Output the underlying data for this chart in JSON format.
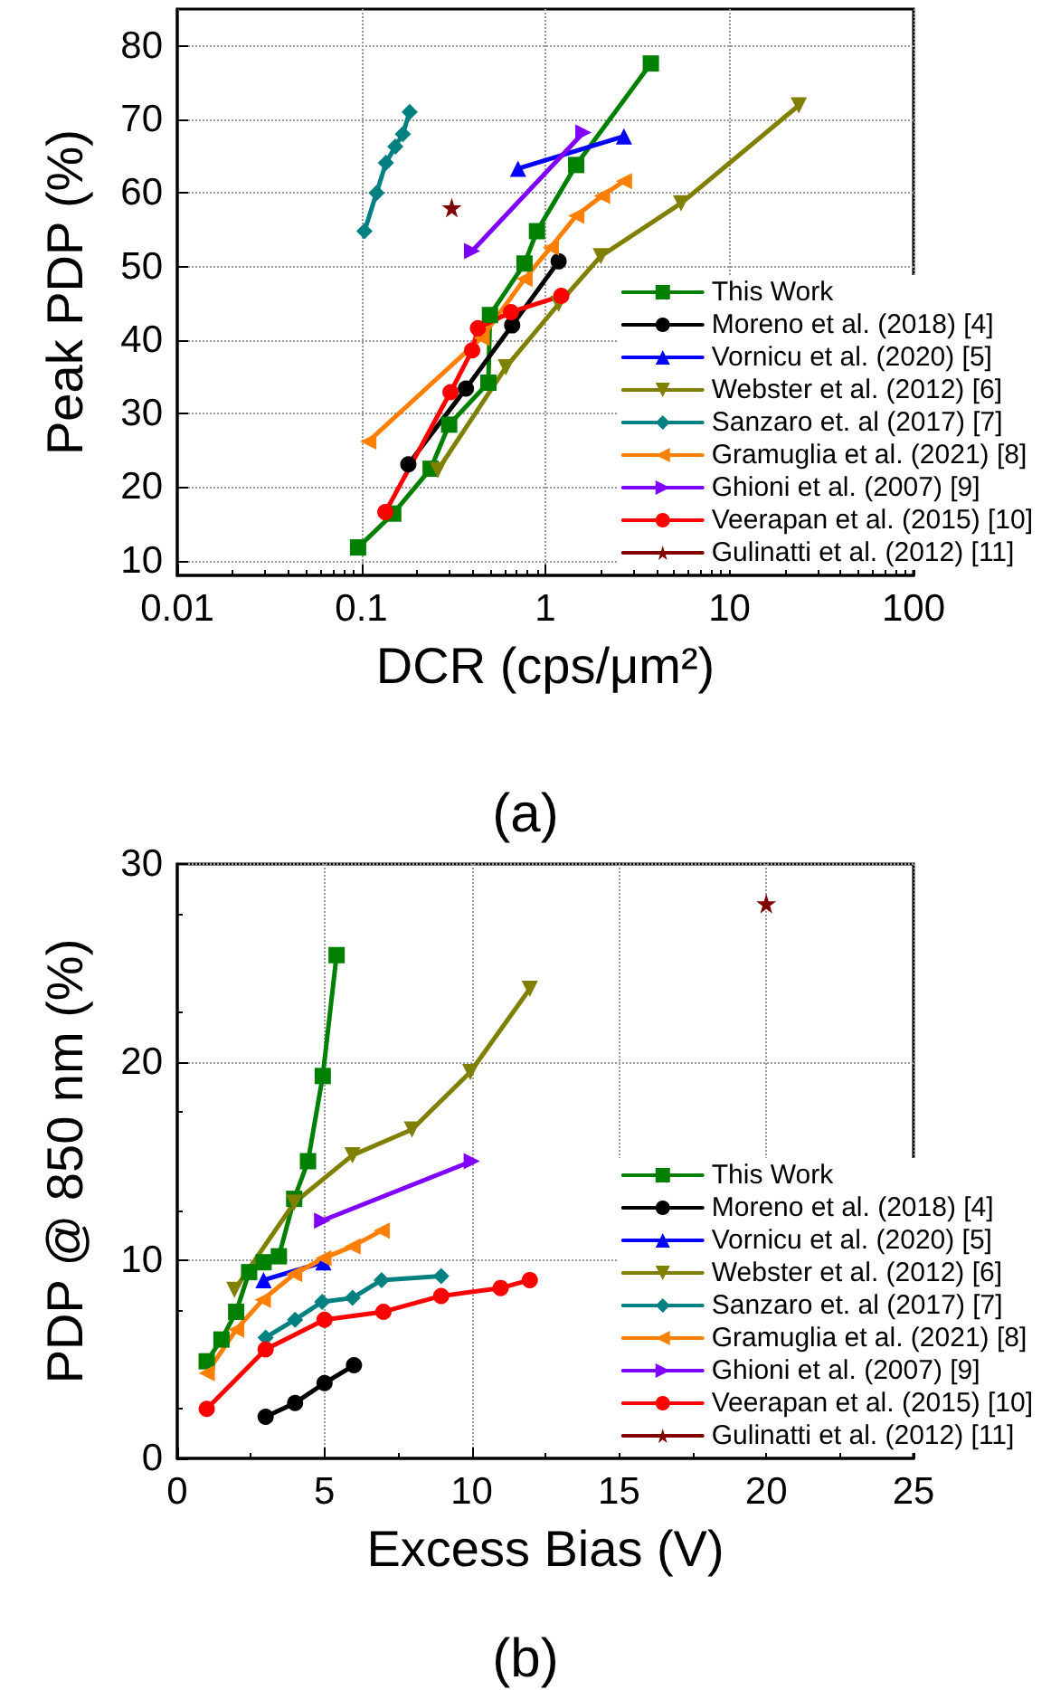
{
  "chart_data": [
    {
      "type": "line",
      "xlabel": "DCR (cps/μm²)",
      "ylabel": "Peak PDP (%)",
      "log": "x",
      "xlim": [
        0.01,
        100
      ],
      "xticks": [
        0.01,
        0.1,
        1,
        10,
        100
      ],
      "ylim": [
        8,
        85
      ],
      "yticks": [
        10,
        20,
        30,
        40,
        50,
        60,
        70,
        80
      ],
      "grid": true,
      "legend": "right",
      "annotations": [
        "(a)"
      ],
      "series": [
        {
          "name": "This Work",
          "color": "#008000",
          "marker": "square",
          "x": [
            0.096,
            0.149,
            0.238,
            0.3,
            0.49,
            0.5,
            0.77,
            0.9,
            1.47,
            3.74
          ],
          "values": [
            11.8,
            16.4,
            22.5,
            28.5,
            34.2,
            43.4,
            50.4,
            54.8,
            63.8,
            77.6
          ]
        },
        {
          "name": "Moreno et al. (2018) [4]",
          "color": "#000000",
          "marker": "circle",
          "x": [
            0.18,
            0.37,
            0.66,
            1.18
          ],
          "values": [
            23.1,
            33.4,
            42.0,
            50.7
          ]
        },
        {
          "name": "Vornicu et al. (2020) [5]",
          "color": "#0000ff",
          "marker": "triangle",
          "x": [
            0.71,
            2.67
          ],
          "values": [
            63.3,
            67.7
          ]
        },
        {
          "name": "Webster et al. (2012) [6]",
          "color": "#808000",
          "marker": "triangle-down",
          "x": [
            0.26,
            0.61,
            1.18,
            2.0,
            5.46,
            23.8
          ],
          "values": [
            22.3,
            36.3,
            44.9,
            51.4,
            58.6,
            71.9
          ]
        },
        {
          "name": "Sanzaro et. al (2017) [7]",
          "color": "#008080",
          "marker": "diamond",
          "x": [
            0.104,
            0.121,
            0.136,
            0.153,
            0.168,
            0.183
          ],
          "values": [
            54.8,
            60.0,
            64.1,
            66.3,
            68.0,
            71.0
          ]
        },
        {
          "name": "Gramuglia et al. (2021) [8]",
          "color": "#ff8000",
          "marker": "triangle-left",
          "x": [
            0.109,
            0.45,
            0.77,
            1.07,
            1.47,
            2.03,
            2.67
          ],
          "values": [
            26.2,
            40.3,
            48.3,
            52.6,
            56.9,
            59.6,
            61.6
          ]
        },
        {
          "name": "Ghioni et al. (2007) [9]",
          "color": "#8000ff",
          "marker": "triangle-right",
          "x": [
            0.4,
            1.61
          ],
          "values": [
            52.1,
            68.2
          ]
        },
        {
          "name": "Veerapan et al. (2015) [10]",
          "color": "#ff0000",
          "marker": "circle",
          "x": [
            0.135,
            0.305,
            0.4,
            0.43,
            0.65,
            1.22
          ],
          "values": [
            16.6,
            32.9,
            38.6,
            41.6,
            43.8,
            46.0
          ]
        },
        {
          "name": "Gulinatti et al. (2012) [11]",
          "color": "#800000",
          "marker": "star",
          "x": [
            0.31
          ],
          "values": [
            58.0
          ]
        }
      ]
    },
    {
      "type": "line",
      "xlabel": "Excess Bias (V)",
      "ylabel": "PDP @ 850 nm (%)",
      "xlim": [
        0,
        25
      ],
      "xticks": [
        0,
        5,
        10,
        15,
        20,
        25
      ],
      "ylim": [
        0,
        30
      ],
      "yticks": [
        0,
        10,
        20,
        30
      ],
      "grid": true,
      "legend": "right",
      "annotations": [
        "(b)"
      ],
      "series": [
        {
          "name": "This Work",
          "color": "#008000",
          "marker": "square",
          "x": [
            1.0,
            1.5,
            2.0,
            2.44,
            2.93,
            3.45,
            3.97,
            4.44,
            4.94,
            5.41
          ],
          "values": [
            4.9,
            6.0,
            7.4,
            9.4,
            9.9,
            10.2,
            13.1,
            15.0,
            19.3,
            25.4
          ]
        },
        {
          "name": "Moreno et al. (2018) [4]",
          "color": "#000000",
          "marker": "circle",
          "x": [
            3,
            4,
            5,
            6
          ],
          "values": [
            2.1,
            2.8,
            3.8,
            4.7
          ]
        },
        {
          "name": "Vornicu et al. (2020) [5]",
          "color": "#0000ff",
          "marker": "triangle",
          "x": [
            2.93,
            4.96
          ],
          "values": [
            9.0,
            9.9
          ]
        },
        {
          "name": "Webster et al. (2012) [6]",
          "color": "#808000",
          "marker": "triangle-down",
          "x": [
            1.94,
            3.97,
            5.95,
            7.97,
            9.95,
            11.97
          ],
          "values": [
            8.5,
            12.9,
            15.3,
            16.6,
            19.5,
            23.7
          ]
        },
        {
          "name": "Sanzaro et. al (2017) [7]",
          "color": "#008080",
          "marker": "diamond",
          "x": [
            3,
            4,
            4.92,
            5.95,
            6.94,
            8.96
          ],
          "values": [
            6.1,
            7.0,
            7.9,
            8.1,
            9.0,
            9.2
          ]
        },
        {
          "name": "Gramuglia et al. (2021) [8]",
          "color": "#ff8000",
          "marker": "triangle-left",
          "x": [
            1,
            2,
            2.9,
            3.97,
            4.96,
            5.95,
            6.94
          ],
          "values": [
            4.3,
            6.5,
            8.0,
            9.3,
            10.1,
            10.7,
            11.5
          ]
        },
        {
          "name": "Ghioni et al. (2007) [9]",
          "color": "#8000ff",
          "marker": "triangle-right",
          "x": [
            4.92,
            10.0
          ],
          "values": [
            12.0,
            15.0
          ]
        },
        {
          "name": "Veerapan et al. (2015) [10]",
          "color": "#ff0000",
          "marker": "circle",
          "x": [
            1,
            3,
            5,
            7,
            8.96,
            10.98,
            11.97
          ],
          "values": [
            2.5,
            5.5,
            7.0,
            7.4,
            8.2,
            8.6,
            9.0
          ]
        },
        {
          "name": "Gulinatti et al. (2012) [11]",
          "color": "#800000",
          "marker": "star",
          "x": [
            20.0
          ],
          "values": [
            28.0
          ]
        }
      ]
    }
  ]
}
